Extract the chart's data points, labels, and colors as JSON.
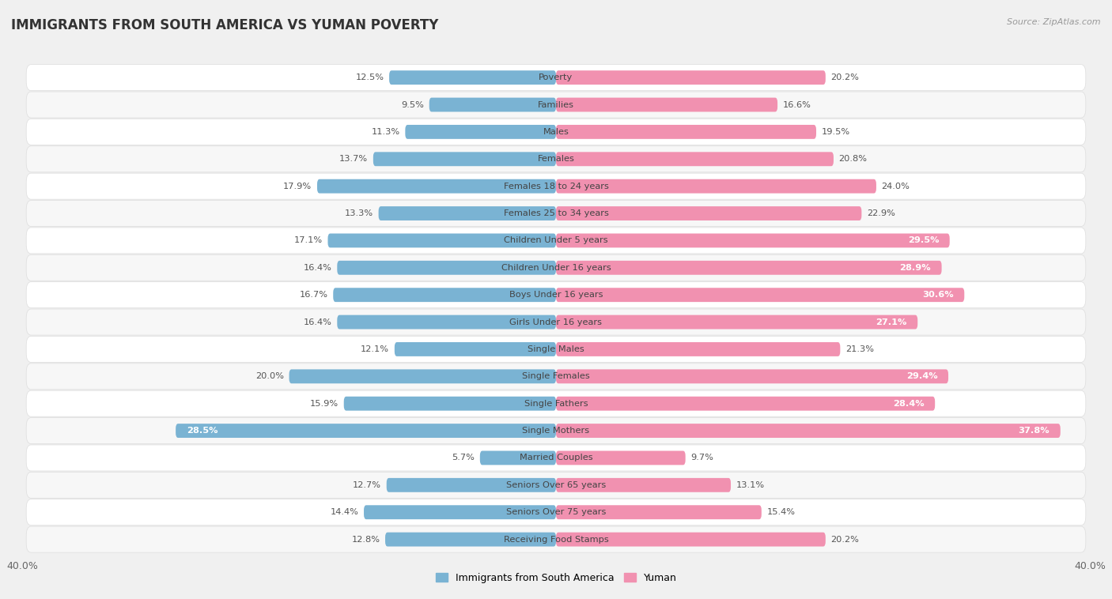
{
  "title": "IMMIGRANTS FROM SOUTH AMERICA VS YUMAN POVERTY",
  "source": "Source: ZipAtlas.com",
  "categories": [
    "Poverty",
    "Families",
    "Males",
    "Females",
    "Females 18 to 24 years",
    "Females 25 to 34 years",
    "Children Under 5 years",
    "Children Under 16 years",
    "Boys Under 16 years",
    "Girls Under 16 years",
    "Single Males",
    "Single Females",
    "Single Fathers",
    "Single Mothers",
    "Married Couples",
    "Seniors Over 65 years",
    "Seniors Over 75 years",
    "Receiving Food Stamps"
  ],
  "left_values": [
    12.5,
    9.5,
    11.3,
    13.7,
    17.9,
    13.3,
    17.1,
    16.4,
    16.7,
    16.4,
    12.1,
    20.0,
    15.9,
    28.5,
    5.7,
    12.7,
    14.4,
    12.8
  ],
  "right_values": [
    20.2,
    16.6,
    19.5,
    20.8,
    24.0,
    22.9,
    29.5,
    28.9,
    30.6,
    27.1,
    21.3,
    29.4,
    28.4,
    37.8,
    9.7,
    13.1,
    15.4,
    20.2
  ],
  "left_color": "#7ab3d3",
  "right_color": "#f191b0",
  "left_color_light": "#aaccdf",
  "right_color_light": "#f7bccf",
  "xlim": 40.0,
  "legend_left": "Immigrants from South America",
  "legend_right": "Yuman",
  "background_color": "#f0f0f0",
  "row_bg_color": "#ffffff",
  "row_alt_color": "#f7f7f7",
  "title_fontsize": 12,
  "bar_height": 0.52,
  "label_fontsize": 8.2,
  "value_inside_threshold": 25.0
}
